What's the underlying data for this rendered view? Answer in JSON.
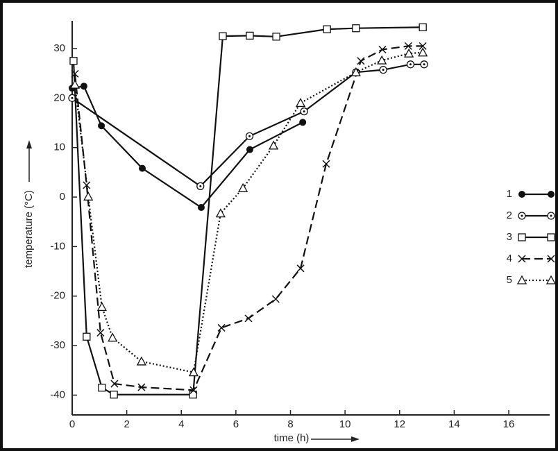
{
  "chart_data": {
    "type": "line",
    "x_label": "time (h)",
    "y_label": "temperature (°C)",
    "xlim": [
      0,
      17.5
    ],
    "ylim": [
      -44,
      35.6
    ],
    "xticks": [
      0,
      2,
      4,
      6,
      8,
      10,
      12,
      14,
      16
    ],
    "yticks": [
      -40,
      -30,
      -20,
      -10,
      0,
      10,
      20,
      30
    ],
    "series": [
      {
        "name": "1",
        "color": "#111",
        "dash": "solid",
        "marker": "filled-circle",
        "x": [
          0,
          0.43,
          1.07,
          2.57,
          4.73,
          6.51,
          8.45
        ],
        "values": [
          22,
          22.4,
          14.4,
          5.8,
          -2.1,
          9.6,
          15.1
        ]
      },
      {
        "name": "2",
        "color": "#111",
        "dash": "solid",
        "marker": "dot-circle",
        "x": [
          0,
          4.7,
          6.5,
          8.5,
          10.4,
          11.4,
          12.4,
          12.9
        ],
        "values": [
          20,
          2.2,
          12.3,
          17.3,
          25.2,
          25.7,
          26.8,
          26.8
        ]
      },
      {
        "name": "3",
        "color": "#111",
        "dash": "solid",
        "marker": "square",
        "x": [
          0.05,
          0.53,
          1.09,
          1.53,
          4.43,
          5.52,
          6.51,
          7.48,
          9.34,
          10.4,
          12.85
        ],
        "values": [
          27.5,
          -28.2,
          -38.5,
          -39.9,
          -39.9,
          32.5,
          32.6,
          32.4,
          33.9,
          34.1,
          34.3
        ]
      },
      {
        "name": "4",
        "color": "#111",
        "dash": "dashed",
        "marker": "cross",
        "x": [
          0.1,
          0.53,
          1.04,
          1.55,
          2.54,
          4.45,
          5.47,
          6.46,
          7.46,
          8.37,
          9.31,
          10.58,
          11.37,
          12.32,
          12.85
        ],
        "values": [
          24.9,
          2.4,
          -27.4,
          -37.7,
          -38.4,
          -39.0,
          -26.4,
          -24.5,
          -20.6,
          -14.4,
          6.7,
          27.5,
          29.8,
          30.5,
          30.5
        ]
      },
      {
        "name": "5",
        "color": "#111",
        "dash": "dotted",
        "marker": "triangle",
        "x": [
          0.1,
          0.59,
          1.09,
          1.48,
          2.54,
          4.45,
          5.44,
          6.26,
          7.38,
          8.37,
          10.4,
          11.35,
          12.34,
          12.85
        ],
        "values": [
          22.7,
          0.1,
          -22.2,
          -28.4,
          -33.2,
          -35.4,
          -3.3,
          1.8,
          10.4,
          19,
          25.2,
          27.6,
          29,
          29.2
        ]
      }
    ]
  }
}
